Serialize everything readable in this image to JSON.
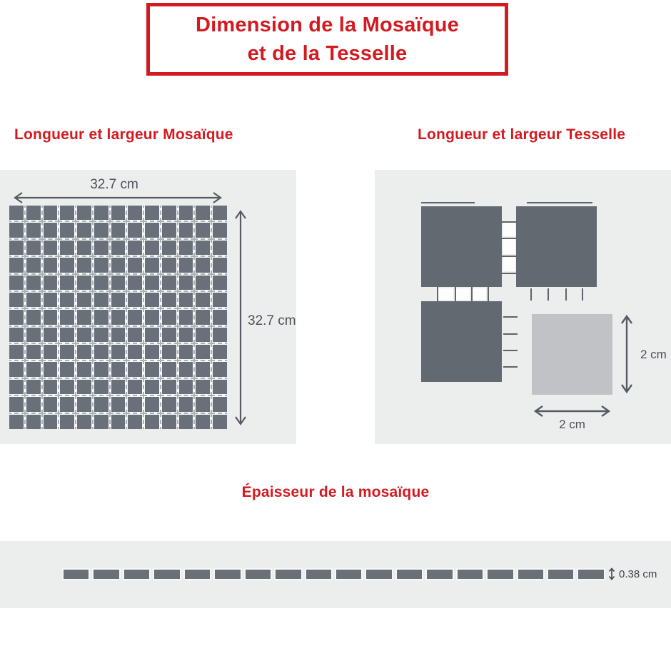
{
  "title": {
    "line1": "Dimension de la Mosaïque",
    "line2": "et de la Tesselle"
  },
  "mosaic_section": {
    "heading": "Longueur et largeur Mosaïque",
    "width_label": "32.7 cm",
    "height_label": "32.7 cm",
    "grid_rows": 13,
    "grid_cols": 13
  },
  "tesselle_section": {
    "heading": "Longueur et largeur Tesselle",
    "width_label": "2 cm",
    "height_label": "2 cm"
  },
  "thickness_section": {
    "heading": "Épaisseur de la mosaïque",
    "value_label": "0.38 cm",
    "segment_count": 18
  },
  "colors": {
    "brand_red": "#d21a21",
    "tile_dark": "#697079",
    "square_dark": "#626971",
    "tile_light": "#c0c2c5",
    "panel_bg": "#eceded",
    "dim_text": "#4c5258",
    "arrow": "#555b61"
  }
}
